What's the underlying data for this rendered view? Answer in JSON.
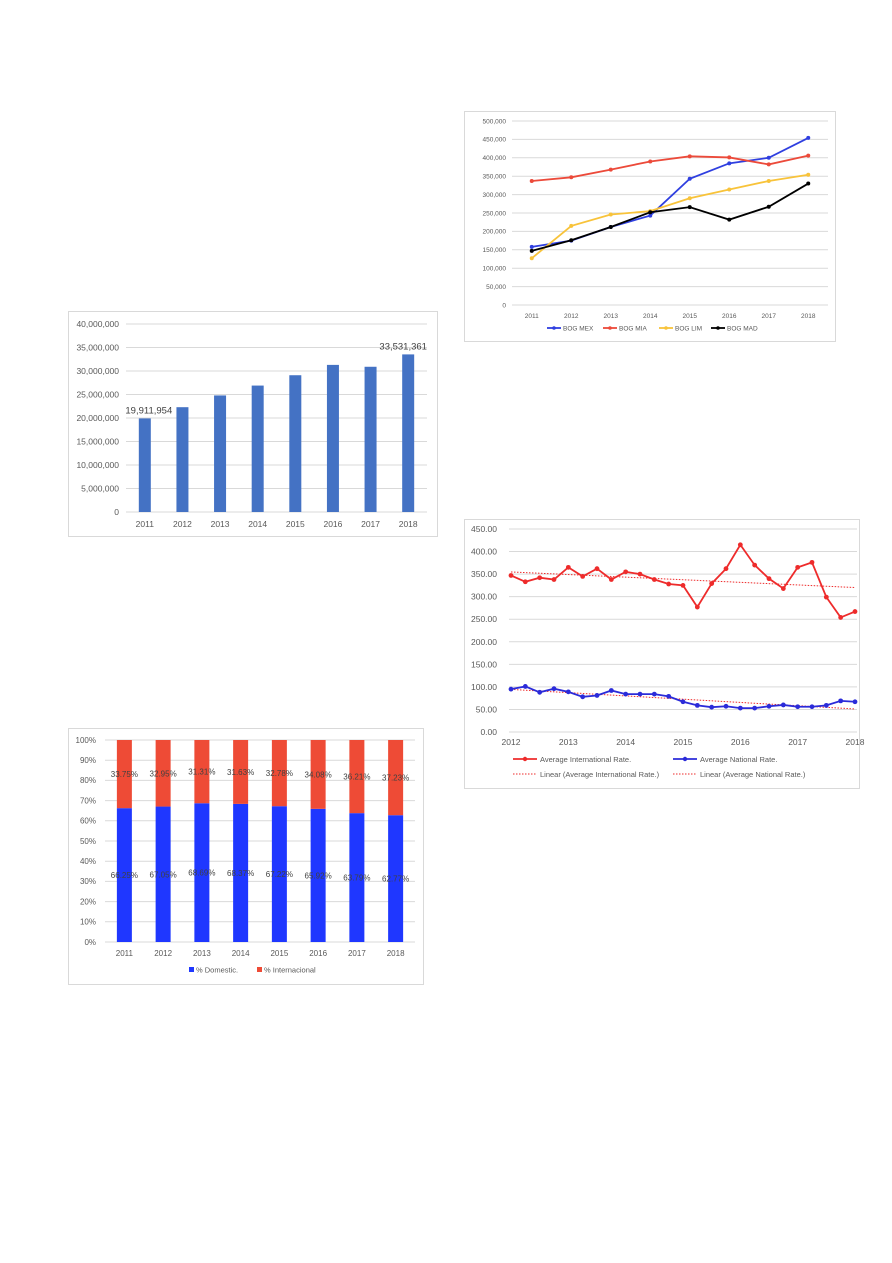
{
  "colors": {
    "bar_blue": "#4472c4",
    "domestic_blue": "#1f37ff",
    "international_red": "#ee4b36",
    "grid": "#d9d9d9",
    "axis_text": "#595959",
    "bog_mex": "#2f3fe0",
    "bog_mia": "#ec4a3a",
    "bog_lim": "#f8c33a",
    "bog_mad": "#000000",
    "intl_rate": "#ee2b2b",
    "nat_rate": "#2b2bd9"
  },
  "chart_data": [
    {
      "id": "passengers",
      "type": "bar",
      "categories": [
        "2011",
        "2012",
        "2013",
        "2014",
        "2015",
        "2016",
        "2017",
        "2018"
      ],
      "values": [
        19911954,
        22300000,
        24800000,
        26900000,
        29100000,
        31300000,
        30900000,
        33531361
      ],
      "data_labels": {
        "0": "19,911,954",
        "7": "33,531,361"
      },
      "ylim": [
        0,
        40000000
      ],
      "yticks": [
        "0",
        "5,000,000",
        "10,000,000",
        "15,000,000",
        "20,000,000",
        "25,000,000",
        "30,000,000",
        "35,000,000",
        "40,000,000"
      ],
      "grid": true
    },
    {
      "id": "domestic-international-share",
      "type": "bar",
      "stacked": true,
      "categories": [
        "2011",
        "2012",
        "2013",
        "2014",
        "2015",
        "2016",
        "2017",
        "2018"
      ],
      "series": [
        {
          "name": "% Domestic.",
          "values": [
            66.25,
            67.05,
            68.69,
            68.37,
            67.22,
            65.92,
            63.79,
            62.77
          ],
          "labels": [
            "66.25%",
            "67.05%",
            "68.69%",
            "68.37%",
            "67.22%",
            "65.92%",
            "63.79%",
            "62.77%"
          ]
        },
        {
          "name": "% Internacional",
          "values": [
            33.75,
            32.95,
            31.31,
            31.63,
            32.78,
            34.08,
            36.21,
            37.23
          ],
          "labels": [
            "33.75%",
            "32.95%",
            "31.31%",
            "31.63%",
            "32.78%",
            "34.08%",
            "36.21%",
            "37.23%"
          ]
        }
      ],
      "ylim": [
        0,
        100
      ],
      "yticks": [
        "0%",
        "10%",
        "20%",
        "30%",
        "40%",
        "50%",
        "60%",
        "70%",
        "80%",
        "90%",
        "100%"
      ],
      "legend": "bottom",
      "grid": true
    },
    {
      "id": "routes",
      "type": "line",
      "x": [
        "2011",
        "2012",
        "2013",
        "2014",
        "2015",
        "2016",
        "2017",
        "2018"
      ],
      "series": [
        {
          "name": "BOG MEX",
          "values": [
            158000,
            175000,
            212000,
            243000,
            343000,
            385000,
            400000,
            454000
          ]
        },
        {
          "name": "BOG MIA",
          "values": [
            337000,
            347000,
            368000,
            390000,
            404000,
            401000,
            382000,
            406000
          ]
        },
        {
          "name": "BOG LIM",
          "values": [
            127000,
            215000,
            246000,
            255000,
            290000,
            314000,
            337000,
            354000
          ]
        },
        {
          "name": "BOG MAD",
          "values": [
            147000,
            176000,
            212000,
            252000,
            266000,
            232000,
            267000,
            330000
          ]
        }
      ],
      "ylim": [
        0,
        500000
      ],
      "yticks": [
        "0",
        "50,000",
        "100,000",
        "150,000",
        "200,000",
        "250,000",
        "300,000",
        "350,000",
        "400,000",
        "450,000",
        "500,000"
      ],
      "legend": "bottom",
      "grid": true
    },
    {
      "id": "average-rates",
      "type": "line",
      "xticks": [
        "2012",
        "2013",
        "2014",
        "2015",
        "2016",
        "2017",
        "2018"
      ],
      "xlim": [
        2012,
        2018
      ],
      "series": [
        {
          "name": "Average International Rate.",
          "x": [
            2012,
            2012.25,
            2012.5,
            2012.75,
            2013,
            2013.25,
            2013.5,
            2013.75,
            2014,
            2014.25,
            2014.5,
            2014.75,
            2015,
            2015.25,
            2015.5,
            2015.75,
            2016,
            2016.25,
            2016.5,
            2016.75,
            2017,
            2017.25,
            2017.5,
            2017.75,
            2018
          ],
          "values": [
            347,
            333,
            342,
            338,
            365,
            345,
            362,
            338,
            355,
            350,
            338,
            328,
            325,
            277,
            329,
            362,
            415,
            370,
            340,
            318,
            365,
            376,
            299,
            254,
            267
          ]
        },
        {
          "name": "Average National Rate.",
          "x": [
            2012,
            2012.25,
            2012.5,
            2012.75,
            2013,
            2013.25,
            2013.5,
            2013.75,
            2014,
            2014.25,
            2014.5,
            2014.75,
            2015,
            2015.25,
            2015.5,
            2015.75,
            2016,
            2016.25,
            2016.5,
            2016.75,
            2017,
            2017.25,
            2017.5,
            2017.75,
            2018
          ],
          "values": [
            95,
            101,
            88,
            96,
            89,
            78,
            81,
            92,
            84,
            84,
            84,
            79,
            67,
            59,
            55,
            57,
            53,
            53,
            57,
            60,
            56,
            56,
            59,
            69,
            67
          ]
        },
        {
          "name": "Linear (Average International Rate.)",
          "trend_of": 0,
          "dashed": true
        },
        {
          "name": "Linear (Average National Rate.)",
          "trend_of": 1,
          "dashed": true
        }
      ],
      "ylim": [
        0,
        450
      ],
      "yticks": [
        "0.00",
        "50.00",
        "100.00",
        "150.00",
        "200.00",
        "250.00",
        "300.00",
        "350.00",
        "400.00",
        "450.00"
      ],
      "legend": "bottom",
      "grid": true
    }
  ]
}
